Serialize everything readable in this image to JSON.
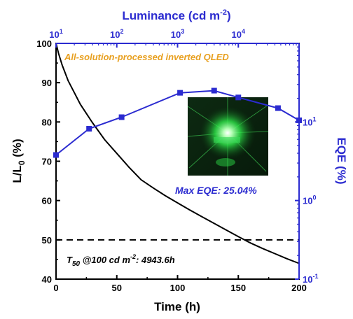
{
  "chart_data": [
    {
      "type": "line",
      "name": "luminance decay",
      "xlabel": "Time (h)",
      "ylabel": "L/L0 (%)",
      "xlim": [
        0,
        200
      ],
      "ylim": [
        40,
        100
      ],
      "x_ticks": [
        "0",
        "50",
        "100",
        "150",
        "200"
      ],
      "y_ticks": [
        "40",
        "50",
        "60",
        "70",
        "80",
        "90",
        "100"
      ],
      "series": [
        {
          "color": "#000000",
          "x": [
            0,
            2,
            5,
            10,
            15,
            20,
            30,
            40,
            50,
            60,
            70,
            80,
            90,
            100,
            110,
            120,
            130,
            140,
            150,
            160,
            170,
            180,
            190,
            200
          ],
          "y": [
            100,
            97.5,
            94.5,
            90.5,
            87.5,
            84.5,
            79.8,
            75.5,
            72,
            68.5,
            65.3,
            63.2,
            61.2,
            59.4,
            57.6,
            55.9,
            54.2,
            52.5,
            50.8,
            49.2,
            47.8,
            46.5,
            45.2,
            44
          ]
        }
      ],
      "reference_line": {
        "y": 50,
        "style": "dashed",
        "color": "#000000"
      }
    },
    {
      "type": "line",
      "name": "EQE vs luminance",
      "xlabel": "Luminance (cd m-2)",
      "ylabel": "EQE (%)",
      "xscale": "log",
      "yscale": "log",
      "xlim": [
        10,
        100000
      ],
      "ylim": [
        0.1,
        100
      ],
      "x_ticks": [
        10,
        100,
        1000,
        10000
      ],
      "y_ticks": [
        0.1,
        1,
        10
      ],
      "series": [
        {
          "color": "#2b2bd0",
          "marker": "square",
          "x": [
            10,
            35,
            120,
            1100,
            4000,
            10000,
            45000,
            100000
          ],
          "y": [
            3.8,
            8.2,
            11.5,
            23.5,
            25.04,
            20.5,
            15,
            10.5
          ]
        }
      ]
    }
  ],
  "labels": {
    "top_axis_title": "Luminance (cd m",
    "top_axis_title_sup": "-2",
    "top_axis_title_end": ")",
    "left_axis_title_main": "L/L",
    "left_axis_title_sub": "0",
    "left_axis_title_end": " (%)",
    "right_axis_title": "EQE (%)",
    "bottom_axis_title": "Time (h)",
    "device_title": "All-solution-processed inverted QLED",
    "max_eqe": "Max EQE: 25.04%",
    "t50_main": "T",
    "t50_sub": "50",
    "t50_mid": " @100 cd m",
    "t50_sup": "-2",
    "t50_end": ": 4943.6h"
  },
  "top_tick_labels": [
    {
      "base": "10",
      "exp": "1"
    },
    {
      "base": "10",
      "exp": "2"
    },
    {
      "base": "10",
      "exp": "3"
    },
    {
      "base": "10",
      "exp": "4"
    }
  ],
  "right_tick_labels": [
    {
      "base": "10",
      "exp": "-1"
    },
    {
      "base": "10",
      "exp": "0"
    },
    {
      "base": "10",
      "exp": "1"
    }
  ],
  "colors": {
    "black": "#000000",
    "blue": "#2b2bd0",
    "orange": "#e8a020",
    "glow": "#2fe84a"
  },
  "inset_photo": {
    "icon": "green-glowing-qled-device-photo"
  }
}
